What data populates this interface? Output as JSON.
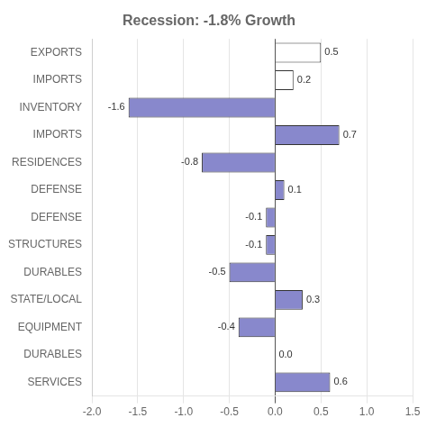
{
  "chart_data": {
    "type": "bar",
    "orientation": "horizontal",
    "title": "Recession: -1.8% Growth",
    "categories": [
      "EXPORTS",
      "IMPORTS",
      "INVENTORY",
      "IMPORTS",
      "RESIDENCES",
      "DEFENSE",
      "DEFENSE",
      "STRUCTURES",
      "DURABLES",
      "STATE/LOCAL",
      "EQUIPMENT",
      "DURABLES",
      "SERVICES"
    ],
    "values": [
      0.5,
      0.2,
      -1.6,
      0.7,
      -0.8,
      0.1,
      -0.1,
      -0.1,
      -0.5,
      0.3,
      -0.4,
      0.0,
      0.6
    ],
    "value_labels": [
      "0.5",
      "0.2",
      "-1.6",
      "0.7",
      "-0.8",
      "0.1",
      "-0.1",
      "-0.1",
      "-0.5",
      "0.3",
      "-0.4",
      "0.0",
      "0.6"
    ],
    "data_labels": true,
    "colors": [
      "white",
      "white",
      "#8888cc",
      "#8888cc",
      "#8888cc",
      "#8888cc",
      "#8888cc",
      "#8888cc",
      "#8888cc",
      "#8888cc",
      "#8888cc",
      "#8888cc",
      "#8888cc"
    ],
    "xlim": [
      -2.0,
      1.5
    ],
    "xticks": [
      {
        "value": -2.0,
        "label": "-2.0"
      },
      -1.5,
      {
        "value": -1.0,
        "label": "-1.0"
      },
      -0.5,
      {
        "value": 0.0,
        "label": "0.0"
      },
      0.5,
      {
        "value": 1.0,
        "label": "1.0"
      },
      1.5
    ],
    "grid": true
  }
}
